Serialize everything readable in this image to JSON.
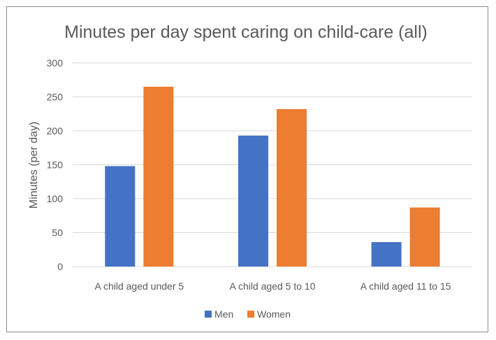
{
  "chart_data": {
    "type": "bar",
    "title": "Minutes per day spent caring on child-care (all)",
    "xlabel": "",
    "ylabel": "Minutes (per day)",
    "categories": [
      "A child aged under 5",
      "A child aged 5 to 10",
      "A child aged 11 to 15"
    ],
    "series": [
      {
        "name": "Men",
        "values": [
          148,
          193,
          36
        ],
        "color": "#4472C4"
      },
      {
        "name": "Women",
        "values": [
          265,
          232,
          87
        ],
        "color": "#ED7D31"
      }
    ],
    "ylim": [
      0,
      300
    ],
    "yticks": [
      0,
      50,
      100,
      150,
      200,
      250,
      300
    ],
    "grid": true,
    "legend_position": "bottom"
  }
}
